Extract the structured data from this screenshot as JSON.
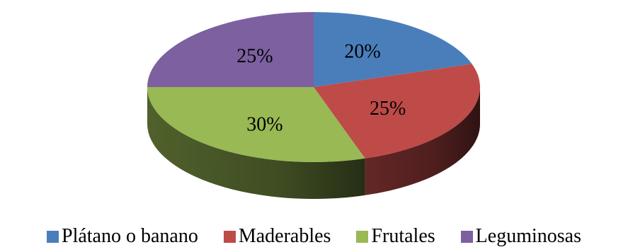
{
  "chart_data": {
    "type": "pie",
    "title": "",
    "categories": [
      "Plátano o banano",
      "Maderables",
      "Frutales",
      "Leguminosas"
    ],
    "values": [
      20,
      25,
      30,
      25
    ],
    "labels": [
      "20%",
      "25%",
      "30%",
      "25%"
    ],
    "colors": [
      "#4a7ebb",
      "#be4b48",
      "#98b954",
      "#7d60a0"
    ],
    "legend_position": "bottom",
    "style": "3d"
  }
}
